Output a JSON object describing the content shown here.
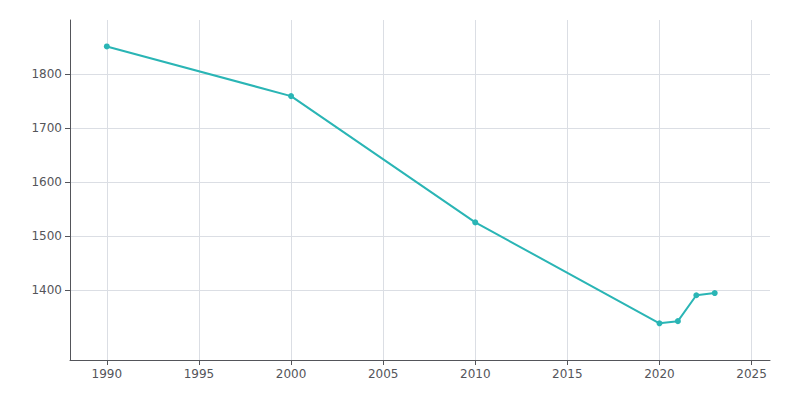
{
  "chart_data": {
    "type": "line",
    "x": [
      1990,
      2000,
      2010,
      2020,
      2021,
      2022,
      2023
    ],
    "values": [
      1851,
      1759,
      1525,
      1338,
      1342,
      1390,
      1394
    ],
    "color": "#2ab5b5",
    "marker": "circle",
    "xlim": [
      1988,
      2026
    ],
    "xticks": [
      1990,
      1995,
      2000,
      2005,
      2010,
      2015,
      2020,
      2025
    ],
    "ylim": [
      1270,
      1900
    ],
    "yticks": [
      1400,
      1500,
      1600,
      1700,
      1800
    ],
    "grid": true
  }
}
